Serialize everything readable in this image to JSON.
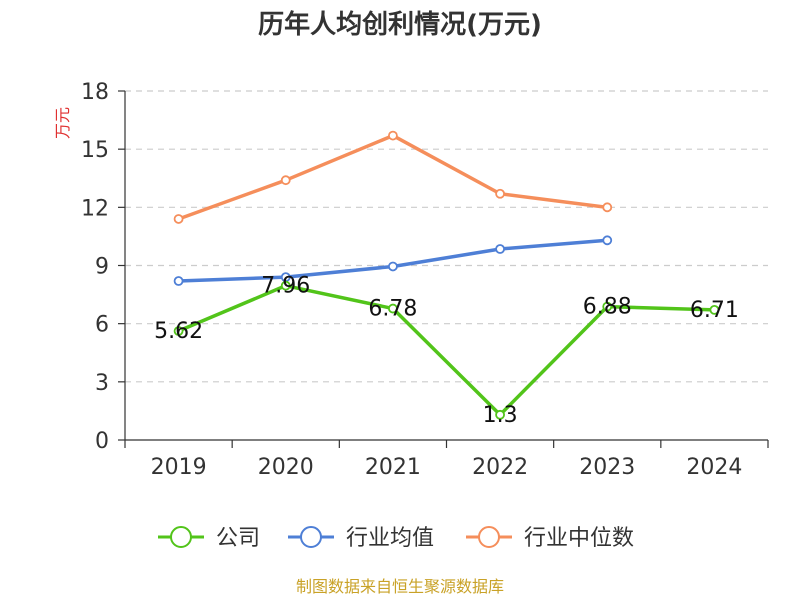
{
  "chart_data": {
    "type": "line",
    "title": "历年人均创利情况(万元)",
    "ylabel": "万元",
    "xlabel": "",
    "categories": [
      "2019",
      "2020",
      "2021",
      "2022",
      "2023",
      "2024"
    ],
    "ylim": [
      0,
      18
    ],
    "yticks": [
      0,
      3,
      6,
      9,
      12,
      15,
      18
    ],
    "grid": true,
    "legend_position": "bottom",
    "series": [
      {
        "name": "公司",
        "color": "#52c41a",
        "values": [
          5.62,
          7.96,
          6.78,
          1.3,
          6.88,
          6.71
        ],
        "labels": [
          "5.62",
          "7.96",
          "6.78",
          "1.3",
          "6.88",
          "6.71"
        ]
      },
      {
        "name": "行业均值",
        "color": "#4e7fd6",
        "values": [
          8.2,
          8.4,
          8.95,
          9.85,
          10.3,
          null
        ]
      },
      {
        "name": "行业中位数",
        "color": "#f58e5b",
        "values": [
          11.4,
          13.4,
          15.7,
          12.7,
          12.0,
          null
        ]
      }
    ]
  },
  "source": "制图数据来自恒生聚源数据库",
  "colors": {
    "unit": "#e03030",
    "source": "#c9a227",
    "grid": "#cccccc",
    "axis": "#333333"
  }
}
